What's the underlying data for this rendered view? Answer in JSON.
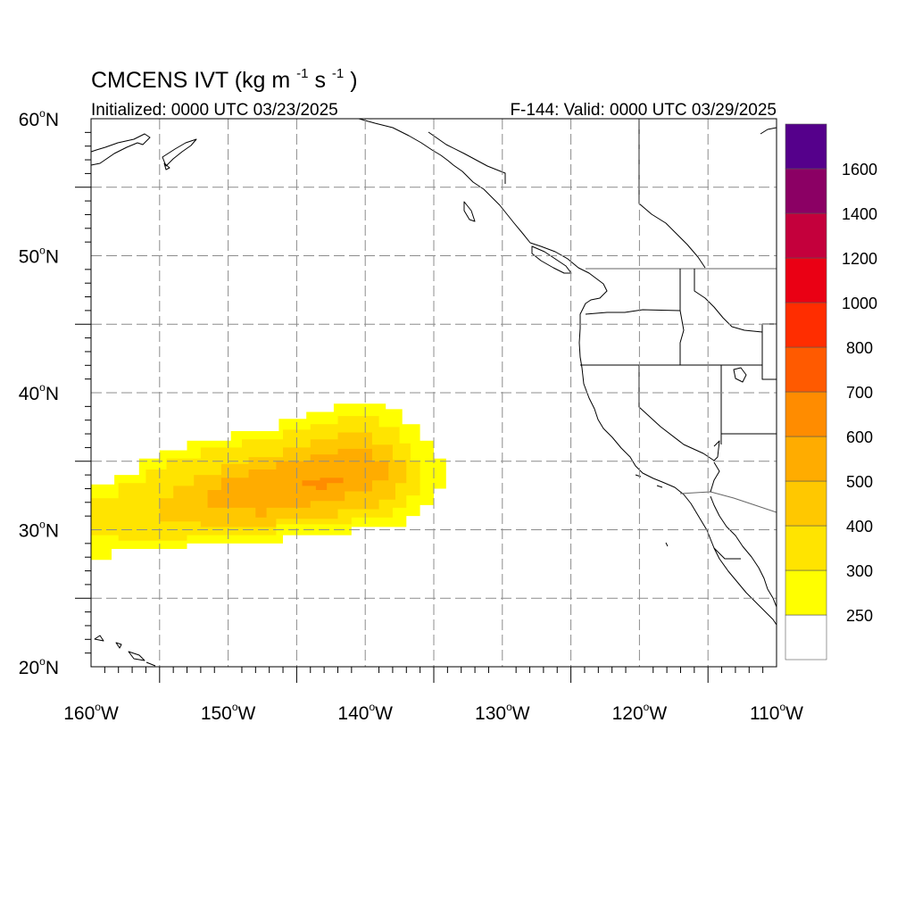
{
  "title": {
    "model": "CMCENS",
    "variable": "IVT",
    "units_open": "(kg m",
    "units_exp1": "-1",
    "units_s": "s",
    "units_exp2": "-1",
    "units_close": ")"
  },
  "init_label": "Initialized: 0000 UTC 03/23/2025",
  "valid_label": "F-144: Valid: 0000 UTC 03/29/2025",
  "lon_labels": [
    {
      "num": "160",
      "hemi": "W",
      "value": -160
    },
    {
      "num": "150",
      "hemi": "W",
      "value": -150
    },
    {
      "num": "140",
      "hemi": "W",
      "value": -140
    },
    {
      "num": "130",
      "hemi": "W",
      "value": -130
    },
    {
      "num": "120",
      "hemi": "W",
      "value": -120
    },
    {
      "num": "110",
      "hemi": "W",
      "value": -110
    }
  ],
  "lat_labels": [
    {
      "num": "60",
      "hemi": "N",
      "value": 60
    },
    {
      "num": "50",
      "hemi": "N",
      "value": 50
    },
    {
      "num": "40",
      "hemi": "N",
      "value": 40
    },
    {
      "num": "30",
      "hemi": "N",
      "value": 30
    },
    {
      "num": "20",
      "hemi": "N",
      "value": 20
    }
  ],
  "degree_symbol": "o",
  "extent": {
    "lon_min": -160,
    "lon_max": -110,
    "lat_min": 20,
    "lat_max": 60
  },
  "grid_lons": [
    -155,
    -150,
    -145,
    -140,
    -135,
    -130,
    -125,
    -120,
    -115
  ],
  "grid_lats": [
    55,
    50,
    45,
    40,
    35,
    30,
    25
  ],
  "colorbar": {
    "levels": [
      {
        "color": "#ffffff",
        "label": "250"
      },
      {
        "color": "#ffff00",
        "label": "300"
      },
      {
        "color": "#ffe400",
        "label": "400"
      },
      {
        "color": "#ffc800",
        "label": "500"
      },
      {
        "color": "#ffac00",
        "label": "600"
      },
      {
        "color": "#ff8c00",
        "label": "700"
      },
      {
        "color": "#ff5a00",
        "label": "800"
      },
      {
        "color": "#ff2d00",
        "label": "1000"
      },
      {
        "color": "#ea0014",
        "label": "1200"
      },
      {
        "color": "#c4003c",
        "label": "1400"
      },
      {
        "color": "#8b0064",
        "label": "1600"
      },
      {
        "color": "#55008b",
        "label": ""
      }
    ]
  },
  "ivt_field": [
    {
      "level": 1,
      "color": "#ffff00",
      "polygon": [
        [
          -160,
          27.8
        ],
        [
          -158.5,
          27.8
        ],
        [
          -158.5,
          28.6
        ],
        [
          -153,
          28.6
        ],
        [
          -153,
          29
        ],
        [
          -146,
          29
        ],
        [
          -146,
          29.6
        ],
        [
          -141,
          29.6
        ],
        [
          -141,
          30.2
        ],
        [
          -137,
          30.2
        ],
        [
          -137,
          31
        ],
        [
          -136,
          31
        ],
        [
          -136,
          31.8
        ],
        [
          -135,
          31.8
        ],
        [
          -135,
          33
        ],
        [
          -134.1,
          33
        ],
        [
          -134.1,
          35.2
        ],
        [
          -135,
          35.2
        ],
        [
          -135,
          36.5
        ],
        [
          -136,
          36.5
        ],
        [
          -136,
          37.7
        ],
        [
          -137.3,
          37.7
        ],
        [
          -137.3,
          38.8
        ],
        [
          -138.5,
          38.8
        ],
        [
          -138.5,
          39.2
        ],
        [
          -142.3,
          39.2
        ],
        [
          -142.3,
          38.6
        ],
        [
          -144.3,
          38.6
        ],
        [
          -144.3,
          38.1
        ],
        [
          -146.3,
          38.1
        ],
        [
          -146.3,
          37.2
        ],
        [
          -149.8,
          37.2
        ],
        [
          -149.8,
          36.5
        ],
        [
          -153,
          36.5
        ],
        [
          -153,
          35.8
        ],
        [
          -155,
          35.8
        ],
        [
          -155,
          35.2
        ],
        [
          -156.5,
          35.2
        ],
        [
          -156.5,
          34
        ],
        [
          -158.3,
          34
        ],
        [
          -158.3,
          33.3
        ],
        [
          -160,
          33.3
        ]
      ]
    },
    {
      "level": 2,
      "color": "#ffe400",
      "polygon": [
        [
          -160,
          29.6
        ],
        [
          -158,
          29.6
        ],
        [
          -158,
          29.2
        ],
        [
          -153,
          29.2
        ],
        [
          -153,
          29.6
        ],
        [
          -146.5,
          29.6
        ],
        [
          -146.5,
          30.4
        ],
        [
          -141,
          30.4
        ],
        [
          -141,
          30.9
        ],
        [
          -138,
          30.9
        ],
        [
          -138,
          31.6
        ],
        [
          -137,
          31.6
        ],
        [
          -137,
          32.5
        ],
        [
          -136,
          32.5
        ],
        [
          -136,
          35
        ],
        [
          -136.7,
          35
        ],
        [
          -136.7,
          36.3
        ],
        [
          -137.5,
          36.3
        ],
        [
          -137.5,
          37.5
        ],
        [
          -139,
          37.5
        ],
        [
          -139,
          38.3
        ],
        [
          -142,
          38.3
        ],
        [
          -142,
          37.7
        ],
        [
          -144,
          37.7
        ],
        [
          -144,
          37.3
        ],
        [
          -146,
          37.3
        ],
        [
          -146,
          36.6
        ],
        [
          -149,
          36.6
        ],
        [
          -149,
          36
        ],
        [
          -152,
          36
        ],
        [
          -152,
          35.2
        ],
        [
          -154.5,
          35.2
        ],
        [
          -154.5,
          34.4
        ],
        [
          -156,
          34.4
        ],
        [
          -156,
          33.4
        ],
        [
          -158,
          33.4
        ],
        [
          -158,
          32.3
        ],
        [
          -160,
          32.3
        ]
      ]
    },
    {
      "level": 3,
      "color": "#ffc800",
      "polygon": [
        [
          -155,
          30.6
        ],
        [
          -152,
          30.6
        ],
        [
          -152,
          30.2
        ],
        [
          -146.5,
          30.2
        ],
        [
          -146.5,
          30.8
        ],
        [
          -142,
          30.8
        ],
        [
          -142,
          31.5
        ],
        [
          -139,
          31.5
        ],
        [
          -139,
          32.2
        ],
        [
          -137.8,
          32.2
        ],
        [
          -137.8,
          33.4
        ],
        [
          -137,
          33.4
        ],
        [
          -137,
          35.1
        ],
        [
          -138,
          35.1
        ],
        [
          -138,
          36.2
        ],
        [
          -139.5,
          36.2
        ],
        [
          -139.5,
          37.1
        ],
        [
          -142,
          37.1
        ],
        [
          -142,
          36.6
        ],
        [
          -144,
          36.6
        ],
        [
          -144,
          36
        ],
        [
          -146,
          36
        ],
        [
          -146,
          35.3
        ],
        [
          -148.5,
          35.3
        ],
        [
          -148.5,
          34.8
        ],
        [
          -150.5,
          34.8
        ],
        [
          -150.5,
          34
        ],
        [
          -152.5,
          34
        ],
        [
          -152.5,
          33.2
        ],
        [
          -154,
          33.2
        ],
        [
          -154,
          32.3
        ],
        [
          -155,
          32.3
        ]
      ]
    },
    {
      "level": 4,
      "color": "#ffac00",
      "polygon": [
        [
          -151.5,
          31.6
        ],
        [
          -148,
          31.6
        ],
        [
          -148,
          30.9
        ],
        [
          -147.2,
          30.9
        ],
        [
          -147.2,
          31.6
        ],
        [
          -144,
          31.6
        ],
        [
          -144,
          32.1
        ],
        [
          -141.5,
          32.1
        ],
        [
          -141.5,
          32.8
        ],
        [
          -139.5,
          32.8
        ],
        [
          -139.5,
          33.6
        ],
        [
          -138.3,
          33.6
        ],
        [
          -138.3,
          35
        ],
        [
          -139.5,
          35
        ],
        [
          -139.5,
          35.9
        ],
        [
          -142,
          35.9
        ],
        [
          -142,
          35.5
        ],
        [
          -144,
          35.5
        ],
        [
          -144,
          35
        ],
        [
          -146.5,
          35
        ],
        [
          -146.5,
          34.4
        ],
        [
          -148.5,
          34.4
        ],
        [
          -148.5,
          33.8
        ],
        [
          -150.5,
          33.8
        ],
        [
          -150.5,
          32.9
        ],
        [
          -151.5,
          32.9
        ]
      ]
    },
    {
      "level": 5,
      "color": "#ff8c00",
      "polygon": [
        [
          -144.6,
          33.2
        ],
        [
          -143.6,
          33.2
        ],
        [
          -143.6,
          32.9
        ],
        [
          -142.8,
          32.9
        ],
        [
          -142.8,
          33.4
        ],
        [
          -141.6,
          33.4
        ],
        [
          -141.6,
          33.8
        ],
        [
          -143.3,
          33.8
        ],
        [
          -143.3,
          33.6
        ],
        [
          -144.6,
          33.6
        ]
      ]
    }
  ]
}
